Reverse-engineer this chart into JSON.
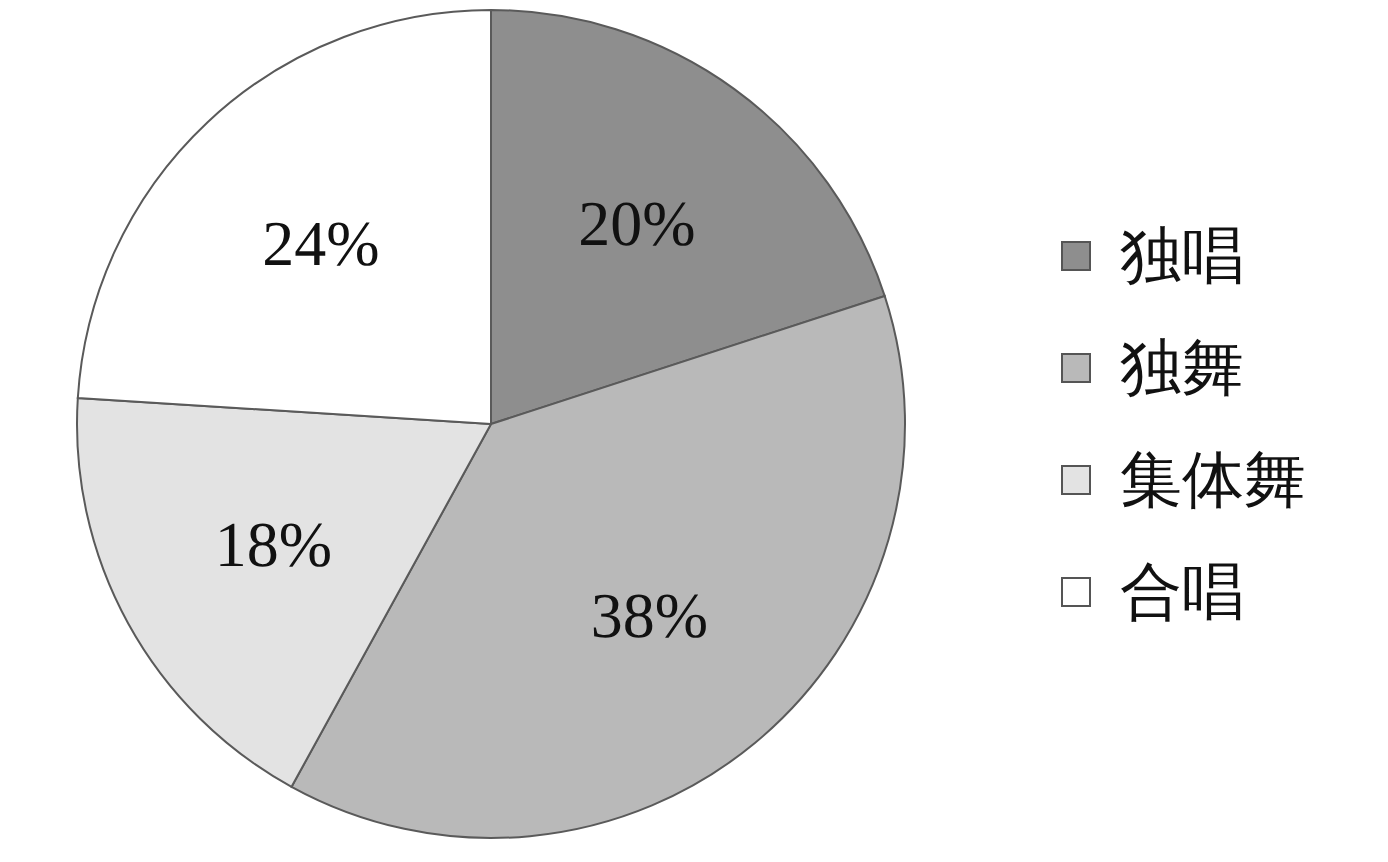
{
  "chart_data": {
    "type": "pie",
    "categories": [
      "独唱",
      "独舞",
      "集体舞",
      "合唱"
    ],
    "values": [
      20,
      38,
      18,
      24
    ],
    "colors": [
      "#8e8e8e",
      "#b9b9b9",
      "#e3e3e3",
      "#ffffff"
    ],
    "value_labels": [
      "20%",
      "38%",
      "18%",
      "24%"
    ],
    "legend": "right"
  }
}
